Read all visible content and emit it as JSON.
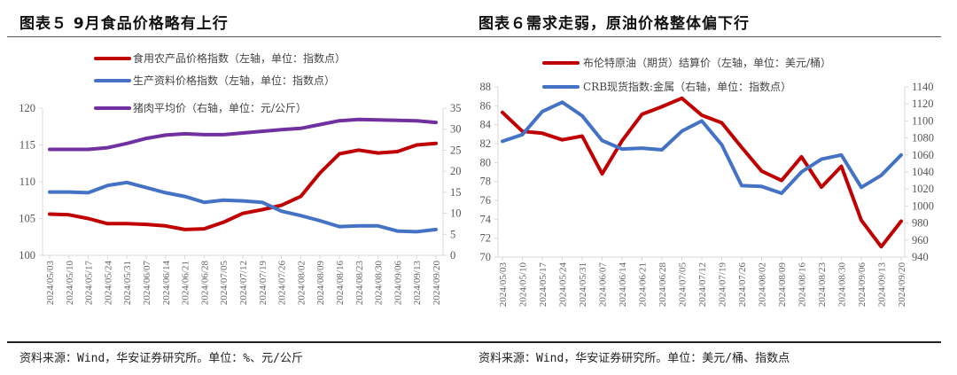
{
  "chart_data": [
    {
      "type": "line",
      "title": "图表５ 9月食品价格略有上行",
      "source": "资料来源：Wind，华安证券研究所。单位：%、元/公斤",
      "x": [
        "2024/05/03",
        "2024/05/10",
        "2024/05/17",
        "2024/05/24",
        "2024/05/31",
        "2024/06/07",
        "2024/06/14",
        "2024/06/21",
        "2024/06/28",
        "2024/07/05",
        "2024/07/12",
        "2024/07/19",
        "2024/07/26",
        "2024/08/02",
        "2024/08/09",
        "2024/08/16",
        "2024/08/23",
        "2024/08/30",
        "2024/09/06",
        "2024/09/13",
        "2024/09/20"
      ],
      "left_axis": {
        "ylim": [
          100,
          120
        ],
        "ticks": [
          "100",
          "105",
          "110",
          "115",
          "120"
        ],
        "tick_values": [
          100,
          105,
          110,
          115,
          120
        ]
      },
      "right_axis": {
        "ylim": [
          0,
          35
        ],
        "ticks": [
          "0",
          "5",
          "10",
          "15",
          "20",
          "25",
          "30",
          "35"
        ],
        "tick_values": [
          0,
          5,
          10,
          15,
          20,
          25,
          30,
          35
        ]
      },
      "legend_placement": "top-center",
      "grid": false,
      "series": [
        {
          "name": "食用农产品价格指数（左轴，单位：指数点）",
          "axis": "left",
          "color": "#c00000",
          "values": [
            105.6,
            105.5,
            105.0,
            104.3,
            104.3,
            104.2,
            104.0,
            103.5,
            103.6,
            104.5,
            105.7,
            106.2,
            106.8,
            108.0,
            111.2,
            113.8,
            114.3,
            113.9,
            114.1,
            115.0,
            115.2
          ]
        },
        {
          "name": "生产资料价格指数（左轴，单位：指数点）",
          "axis": "left",
          "color": "#4472c4",
          "values": [
            108.6,
            108.6,
            108.5,
            109.5,
            109.9,
            109.2,
            108.5,
            108.0,
            107.2,
            107.5,
            107.4,
            107.2,
            106.0,
            105.4,
            104.7,
            103.9,
            104.0,
            104.0,
            103.3,
            103.2,
            103.5
          ]
        },
        {
          "name": "猪肉平均价（右轴，单位：元/公斤）",
          "axis": "right",
          "color": "#7030a0",
          "values": [
            25.2,
            25.2,
            25.2,
            25.6,
            26.6,
            27.8,
            28.6,
            28.9,
            28.7,
            28.7,
            29.1,
            29.5,
            29.9,
            30.2,
            31.1,
            32.0,
            32.3,
            32.2,
            32.1,
            32.0,
            31.6
          ]
        }
      ]
    },
    {
      "type": "line",
      "title": "图表６需求走弱，原油价格整体偏下行",
      "source": "资料来源：Wind，华安证券研究所。单位：美元/桶、指数点",
      "x": [
        "2024/05/03",
        "2024/05/10",
        "2024/05/17",
        "2024/05/24",
        "2024/05/31",
        "2024/06/07",
        "2024/06/14",
        "2024/06/21",
        "2024/06/28",
        "2024/07/05",
        "2024/07/12",
        "2024/07/19",
        "2024/07/26",
        "2024/08/02",
        "2024/08/09",
        "2024/08/16",
        "2024/08/23",
        "2024/08/30",
        "2024/09/06",
        "2024/09/13",
        "2024/09/20"
      ],
      "left_axis": {
        "ylim": [
          70,
          88
        ],
        "ticks": [
          "70",
          "72",
          "74",
          "76",
          "78",
          "80",
          "82",
          "84",
          "86",
          "88"
        ],
        "tick_values": [
          70,
          72,
          74,
          76,
          78,
          80,
          82,
          84,
          86,
          88
        ]
      },
      "right_axis": {
        "ylim": [
          940,
          1140
        ],
        "ticks": [
          "940",
          "960",
          "980",
          "1000",
          "1020",
          "1040",
          "1060",
          "1080",
          "1100",
          "1120",
          "1140"
        ],
        "tick_values": [
          940,
          960,
          980,
          1000,
          1020,
          1040,
          1060,
          1080,
          1100,
          1120,
          1140
        ]
      },
      "legend_placement": "top-center",
      "grid": false,
      "series": [
        {
          "name": "布伦特原油（期货）结算价（左轴，单位：美元/桶）",
          "axis": "left",
          "color": "#c00000",
          "values": [
            85.3,
            83.3,
            83.1,
            82.4,
            82.8,
            78.8,
            82.3,
            85.1,
            85.9,
            86.8,
            85.0,
            84.2,
            81.6,
            79.1,
            78.1,
            80.6,
            77.4,
            79.6,
            73.9,
            71.1,
            73.8
          ]
        },
        {
          "name": "CRB现货指数:金属（右轴，单位：指数点）",
          "axis": "right",
          "color": "#4472c4",
          "values": [
            1076,
            1084,
            1111,
            1122,
            1106,
            1077,
            1067,
            1068,
            1066,
            1088,
            1100,
            1072,
            1024,
            1023,
            1015,
            1040,
            1055,
            1060,
            1022,
            1036,
            1060
          ]
        }
      ]
    }
  ]
}
